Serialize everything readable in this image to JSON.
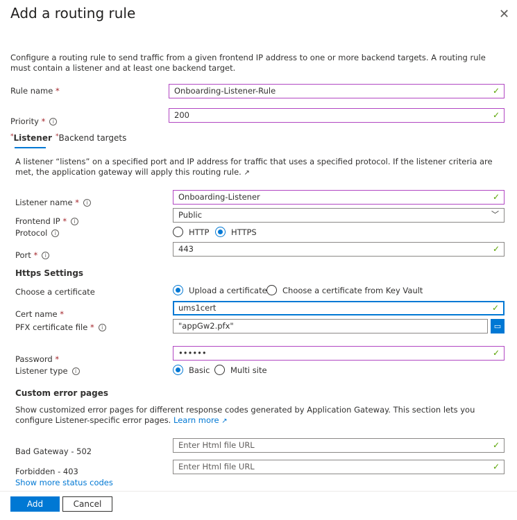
{
  "title": "Add a routing rule",
  "description": "Configure a routing rule to send traffic from a given frontend IP address to one or more backend targets. A routing rule must contain a listener and at least one backend target.",
  "rule_name": {
    "label": "Rule name",
    "value": "Onboarding-Listener-Rule"
  },
  "priority": {
    "label": "Priority",
    "value": "200"
  },
  "tabs": [
    {
      "label": "Listener",
      "active": true
    },
    {
      "label": "Backend targets",
      "active": false
    }
  ],
  "listener": {
    "description": "A listener “listens” on a specified port and IP address for traffic that uses a specified protocol. If the listener criteria are met, the application gateway will apply this routing rule.",
    "name": {
      "label": "Listener name",
      "value": "Onboarding-Listener"
    },
    "frontend_ip": {
      "label": "Frontend IP",
      "value": "Public"
    },
    "protocol": {
      "label": "Protocol",
      "options": [
        "HTTP",
        "HTTPS"
      ],
      "selected": "HTTPS"
    },
    "port": {
      "label": "Port",
      "value": "443"
    }
  },
  "https": {
    "heading": "Https Settings",
    "choose": {
      "label": "Choose a certificate",
      "options": [
        "Upload a certificate",
        "Choose a certificate from Key Vault"
      ],
      "selected": "Upload a certificate"
    },
    "cert_name": {
      "label": "Cert name",
      "value": "ums1cert"
    },
    "pfx": {
      "label": "PFX certificate file",
      "value": "\"appGw2.pfx\""
    },
    "password": {
      "label": "Password",
      "value": "••••••"
    },
    "listener_type": {
      "label": "Listener type",
      "options": [
        "Basic",
        "Multi site"
      ],
      "selected": "Basic"
    }
  },
  "errors": {
    "heading": "Custom error pages",
    "description": "Show customized error pages for different response codes generated by Application Gateway. This section lets you configure Listener-specific error pages.",
    "learn_more": "Learn more",
    "bad_gateway": {
      "label": "Bad Gateway - 502",
      "placeholder": "Enter Html file URL"
    },
    "forbidden": {
      "label": "Forbidden - 403",
      "placeholder": "Enter Html file URL"
    },
    "show_more": "Show more status codes"
  },
  "footer": {
    "add": "Add",
    "cancel": "Cancel"
  },
  "colors": {
    "accent": "#0078d4",
    "valid": "#57a300",
    "required": "#a4262c",
    "focus_border": "#b146c2"
  }
}
